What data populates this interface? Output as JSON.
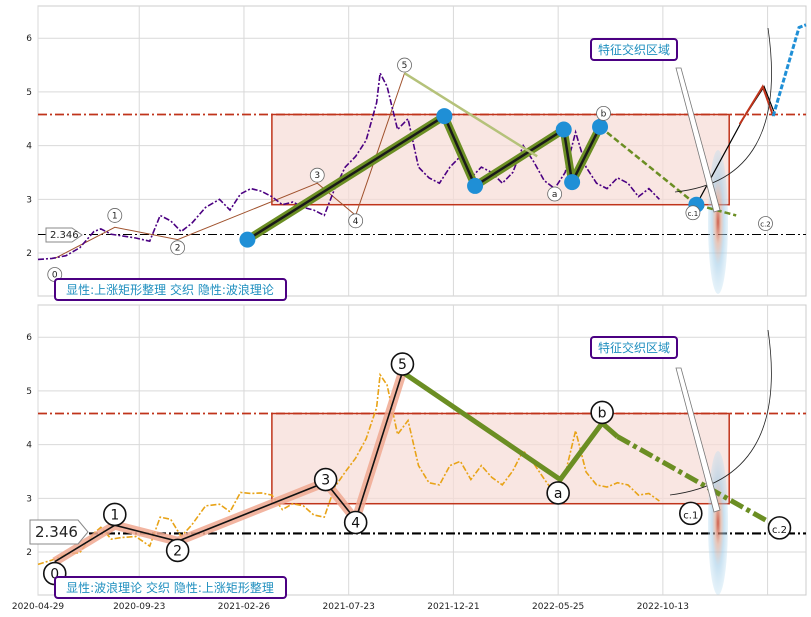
{
  "colors": {
    "title_border": "#4b0082",
    "title_text": "#1f8fbf",
    "top_price": "#4b0082",
    "bottom_price": "#e8a317",
    "wave_green": "#6b8e23",
    "node_blue": "#1f8fd6",
    "box_fill": "#f7dcd6",
    "box_edge": "#c0341b",
    "resistance": "#c0341b",
    "support": "#000000"
  },
  "chart_data": [
    {
      "type": "line",
      "panel": "top",
      "title": "显性:上涨矩形整理 交织 隐性:波浪理论",
      "annotation": "特征交织区域",
      "price_label": "2.346",
      "ylim": [
        1.2,
        6.6
      ],
      "yticks": [
        2,
        3,
        4,
        5,
        6
      ],
      "resistance": 4.58,
      "support": 2.346,
      "rectangle": {
        "x0": 335,
        "x1": 990,
        "y0": 2.9,
        "y1": 4.58
      },
      "series": [
        {
          "values_xy": [
            [
              0,
              1.88
            ],
            [
              20,
              1.9
            ],
            [
              40,
              1.95
            ],
            [
              60,
              2.1
            ],
            [
              80,
              2.4
            ],
            [
              90,
              2.45
            ],
            [
              105,
              2.35
            ],
            [
              120,
              2.32
            ],
            [
              140,
              2.28
            ],
            [
              160,
              2.22
            ],
            [
              175,
              2.7
            ],
            [
              190,
              2.6
            ],
            [
              205,
              2.4
            ],
            [
              220,
              2.55
            ],
            [
              240,
              2.85
            ],
            [
              260,
              3.0
            ],
            [
              275,
              2.8
            ],
            [
              290,
              3.1
            ],
            [
              305,
              3.2
            ],
            [
              320,
              3.15
            ],
            [
              335,
              3.05
            ],
            [
              350,
              2.9
            ],
            [
              365,
              2.95
            ],
            [
              380,
              2.85
            ],
            [
              395,
              2.8
            ],
            [
              410,
              2.7
            ],
            [
              425,
              3.2
            ],
            [
              440,
              3.6
            ],
            [
              455,
              3.8
            ],
            [
              470,
              4.1
            ],
            [
              485,
              4.8
            ],
            [
              490,
              5.35
            ],
            [
              500,
              5.1
            ],
            [
              515,
              4.3
            ],
            [
              530,
              4.5
            ],
            [
              545,
              3.6
            ],
            [
              560,
              3.4
            ],
            [
              575,
              3.3
            ],
            [
              590,
              3.6
            ],
            [
              605,
              3.8
            ],
            [
              620,
              3.4
            ],
            [
              635,
              3.6
            ],
            [
              650,
              3.5
            ],
            [
              665,
              3.3
            ],
            [
              680,
              3.5
            ],
            [
              695,
              4.0
            ],
            [
              710,
              3.7
            ],
            [
              725,
              3.35
            ],
            [
              740,
              3.2
            ],
            [
              755,
              3.5
            ],
            [
              770,
              4.25
            ],
            [
              785,
              3.6
            ],
            [
              800,
              3.3
            ],
            [
              815,
              3.2
            ],
            [
              830,
              3.4
            ],
            [
              845,
              3.3
            ],
            [
              860,
              3.05
            ],
            [
              875,
              3.2
            ],
            [
              890,
              3.0
            ]
          ]
        }
      ],
      "waves": [
        {
          "label": "0",
          "x": 24,
          "y": 1.6
        },
        {
          "label": "1",
          "x": 110,
          "y": 2.7
        },
        {
          "label": "2",
          "x": 200,
          "y": 2.1
        },
        {
          "label": "3",
          "x": 400,
          "y": 3.45
        },
        {
          "label": "4",
          "x": 455,
          "y": 2.6
        },
        {
          "label": "5",
          "x": 525,
          "y": 5.5
        },
        {
          "label": "a",
          "x": 740,
          "y": 3.1
        },
        {
          "label": "b",
          "x": 810,
          "y": 4.6
        },
        {
          "label": "c.1",
          "x": 938,
          "y": 2.75
        },
        {
          "label": "c.2",
          "x": 1042,
          "y": 2.55
        }
      ],
      "nodes": [
        [
          300,
          2.25
        ],
        [
          582,
          4.55
        ],
        [
          626,
          3.25
        ],
        [
          753,
          4.3
        ],
        [
          765,
          3.32
        ],
        [
          805,
          4.35
        ],
        [
          943,
          2.9
        ]
      ]
    },
    {
      "type": "line",
      "panel": "bottom",
      "title": "显性:波浪理论 交织 隐性:上涨矩形整理",
      "annotation": "特征交织区域",
      "price_label": "2.346",
      "ylim": [
        1.2,
        6.6
      ],
      "yticks": [
        2,
        3,
        4,
        5,
        6
      ],
      "resistance": 4.58,
      "support": 2.346,
      "rectangle": {
        "x0": 335,
        "x1": 990,
        "y0": 2.9,
        "y1": 4.58
      },
      "xticks": [
        "2020-04-29",
        "2020-09-23",
        "2021-02-26",
        "2021-07-23",
        "2021-12-21",
        "2022-05-25",
        "2022-10-13"
      ],
      "waves": [
        {
          "label": "0",
          "x": 24,
          "y": 1.6
        },
        {
          "label": "1",
          "x": 110,
          "y": 2.7
        },
        {
          "label": "2",
          "x": 200,
          "y": 2.03
        },
        {
          "label": "3",
          "x": 412,
          "y": 3.35
        },
        {
          "label": "4",
          "x": 455,
          "y": 2.55
        },
        {
          "label": "5",
          "x": 522,
          "y": 5.5
        },
        {
          "label": "a",
          "x": 745,
          "y": 3.1
        },
        {
          "label": "b",
          "x": 808,
          "y": 4.6
        },
        {
          "label": "c.1",
          "x": 935,
          "y": 2.72
        },
        {
          "label": "c.2",
          "x": 1062,
          "y": 2.45
        }
      ]
    }
  ]
}
